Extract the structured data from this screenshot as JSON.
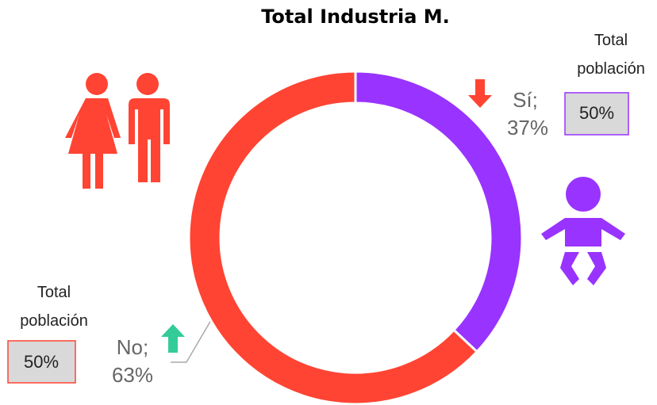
{
  "chart_data": {
    "type": "pie",
    "title": "Total Industria M.",
    "categories": [
      "Sí;",
      "No;"
    ],
    "values": [
      37,
      63
    ],
    "value_labels": [
      "37%",
      "63%"
    ],
    "colors": [
      "#9933ff",
      "#ff4433"
    ],
    "annotations": [
      {
        "label": "Total población",
        "value": "50%",
        "color": "#9933ff"
      },
      {
        "label": "Total población",
        "value": "50%",
        "color": "#ff4433"
      }
    ]
  }
}
